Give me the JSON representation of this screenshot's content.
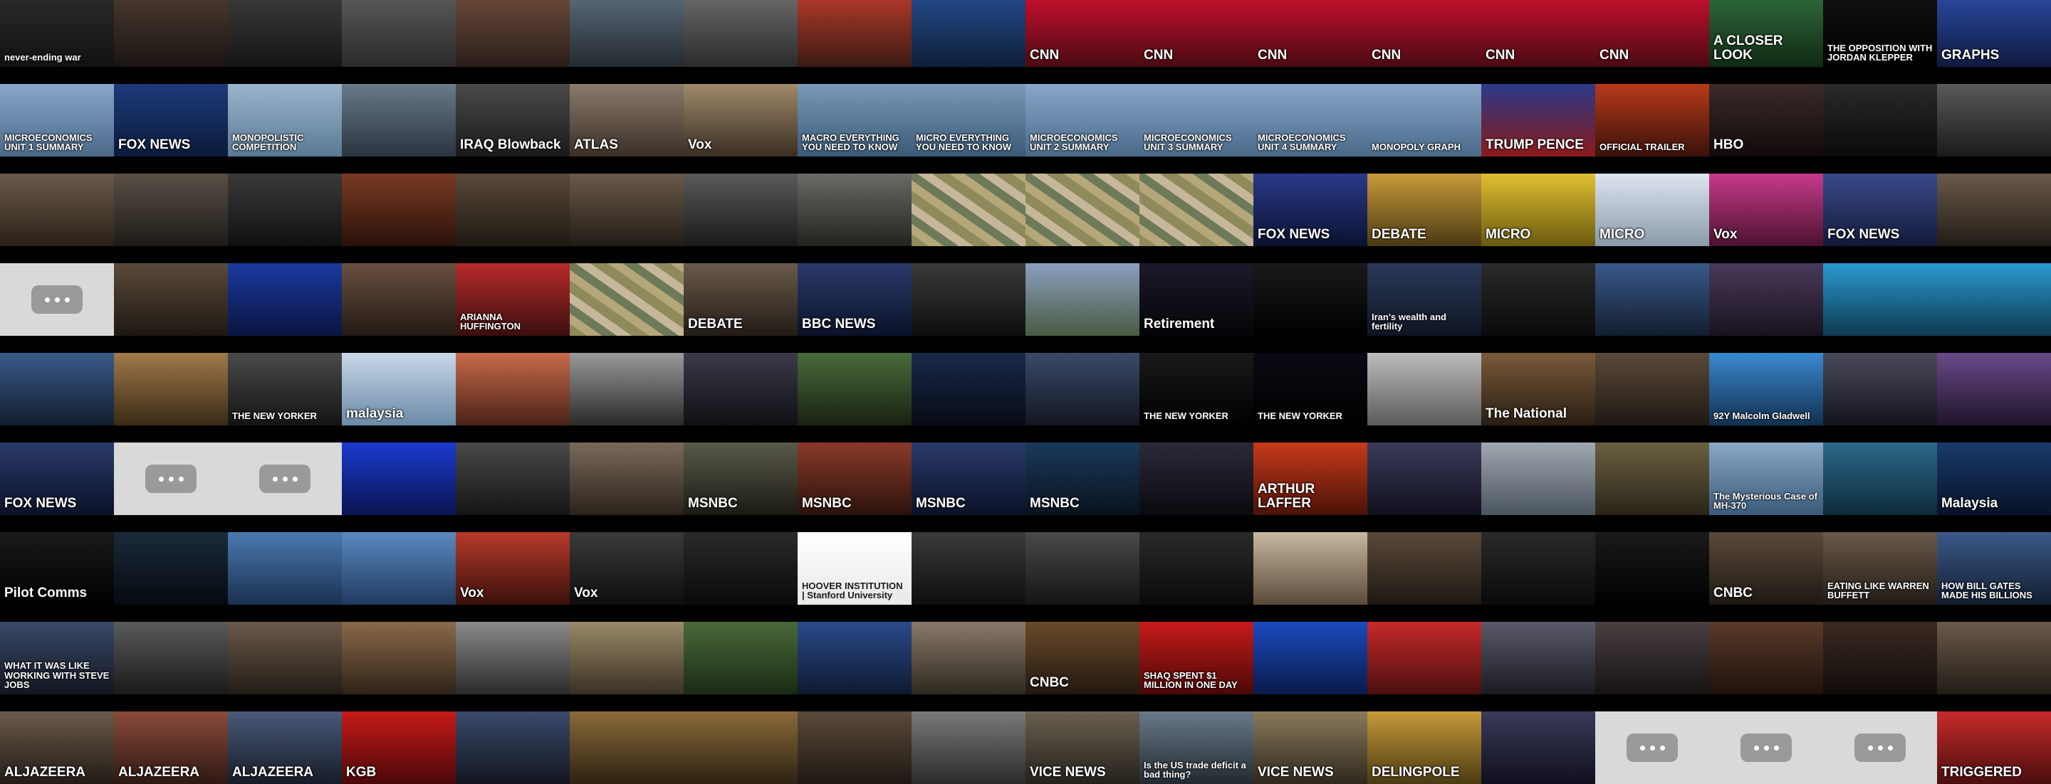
{
  "title": "Video thumbnail wall",
  "rows": [
    [
      {
        "caption": "never-ending war",
        "bg": "linear-gradient(#2b2b2b,#111)"
      },
      {
        "caption": "",
        "bg": "linear-gradient(#4a3a30,#1a1411)"
      },
      {
        "caption": "",
        "bg": "linear-gradient(#3b3b3b,#151515)"
      },
      {
        "caption": "",
        "bg": "linear-gradient(#5a5a5a,#2a2a2a)"
      },
      {
        "caption": "",
        "bg": "linear-gradient(#6b4a3a,#2a1e19)"
      },
      {
        "caption": "",
        "bg": "linear-gradient(#5b6b7a,#23292f)"
      },
      {
        "caption": "",
        "bg": "linear-gradient(#6a6a6a,#2b2b2b)"
      },
      {
        "caption": "",
        "bg": "linear-gradient(#b33a2a,#3b1a14)"
      },
      {
        "caption": "",
        "bg": "linear-gradient(#234a8a,#0f1f3a)"
      },
      {
        "caption": "CNN",
        "bg": "linear-gradient(#c8102e,#4a0a12)"
      },
      {
        "caption": "CNN",
        "bg": "linear-gradient(#c8102e,#4a0a12)"
      },
      {
        "caption": "CNN",
        "bg": "linear-gradient(#c8102e,#4a0a12)"
      },
      {
        "caption": "CNN",
        "bg": "linear-gradient(#c8102e,#4a0a12)"
      },
      {
        "caption": "CNN",
        "bg": "linear-gradient(#c8102e,#4a0a12)"
      },
      {
        "caption": "CNN",
        "bg": "linear-gradient(#c8102e,#4a0a12)"
      },
      {
        "caption": "A CLOSER LOOK",
        "bg": "linear-gradient(#2f6a3a,#0f2a14)"
      },
      {
        "caption": "THE OPPOSITION WITH JORDAN KLEPPER",
        "bg": "linear-gradient(#111,#000)"
      },
      {
        "caption": "GRAPHS",
        "bg": "linear-gradient(#2a4aa0,#0f1a40)"
      }
    ],
    [
      {
        "caption": "MICROECONOMICS UNIT 1 SUMMARY",
        "bg": "linear-gradient(#8aa6c8,#4a6a8a)"
      },
      {
        "caption": "FOX NEWS",
        "bg": "linear-gradient(#1d3b7a,#0b1a3a)"
      },
      {
        "caption": "MONOPOLISTIC COMPETITION",
        "bg": "linear-gradient(#9ab4cc,#5a7a94)"
      },
      {
        "caption": "",
        "bg": "linear-gradient(#6a7a8a,#2a3440)"
      },
      {
        "caption": "IRAQ Blowback",
        "bg": "linear-gradient(#4a4a4a,#1a1a1a)"
      },
      {
        "caption": "ATLAS",
        "bg": "linear-gradient(#8a7a6a,#3a3028)"
      },
      {
        "caption": "Vox",
        "bg": "linear-gradient(#a08a6a,#3a2e22)"
      },
      {
        "caption": "MACRO EVERYTHING YOU NEED TO KNOW",
        "bg": "linear-gradient(#7a9ab8,#3a5a78)"
      },
      {
        "caption": "MICRO EVERYTHING YOU NEED TO KNOW",
        "bg": "linear-gradient(#7a9ab8,#3a5a78)"
      },
      {
        "caption": "MICROECONOMICS UNIT 2 SUMMARY",
        "bg": "linear-gradient(#8aa6c8,#4a6a8a)"
      },
      {
        "caption": "MICROECONOMICS UNIT 3 SUMMARY",
        "bg": "linear-gradient(#8aa6c8,#4a6a8a)"
      },
      {
        "caption": "MICROECONOMICS UNIT 4 SUMMARY",
        "bg": "linear-gradient(#8aa6c8,#4a6a8a)"
      },
      {
        "caption": "MONOPOLY GRAPH",
        "bg": "linear-gradient(#8aa6c8,#4a6a8a)"
      },
      {
        "caption": "TRUMP PENCE",
        "bg": "linear-gradient(#2a3a8a,#8a1a1a)"
      },
      {
        "caption": "OFFICIAL TRAILER",
        "bg": "linear-gradient(#b83a1a,#3a120a)"
      },
      {
        "caption": "HBO",
        "bg": "linear-gradient(#3a2a2a,#120a0a)"
      },
      {
        "caption": "",
        "bg": "linear-gradient(#2a2a2a,#0a0a0a)"
      },
      {
        "caption": "",
        "bg": "linear-gradient(#5a5a5a,#1a1a1a)"
      }
    ],
    [
      {
        "caption": "",
        "bg": "linear-gradient(#6a5a4a,#2a2018)"
      },
      {
        "caption": "",
        "bg": "linear-gradient(#5a5048,#1e1a16)"
      },
      {
        "caption": "",
        "bg": "linear-gradient(#3a3a3a,#101010)"
      },
      {
        "caption": "",
        "bg": "linear-gradient(#7a3a22,#2a120a)"
      },
      {
        "caption": "",
        "bg": "linear-gradient(#5a4a3a,#1e1812)"
      },
      {
        "caption": "",
        "bg": "linear-gradient(#6a5a4a,#221c16)"
      },
      {
        "caption": "",
        "bg": "linear-gradient(#5a5a5a,#1a1a1a)"
      },
      {
        "caption": "",
        "bg": "linear-gradient(#6a6a66,#22221e)"
      },
      {
        "caption": "",
        "bg": "money"
      },
      {
        "caption": "",
        "bg": "money"
      },
      {
        "caption": "",
        "bg": "money"
      },
      {
        "caption": "FOX NEWS",
        "bg": "linear-gradient(#2a3a8a,#0a1230)"
      },
      {
        "caption": "DEBATE",
        "bg": "linear-gradient(#c89a3a,#4a3a12)"
      },
      {
        "caption": "MICRO",
        "bg": "linear-gradient(#e0c030,#6a5a10)"
      },
      {
        "caption": "MICRO",
        "bg": "linear-gradient(#dde4ee,#8a9aaa)"
      },
      {
        "caption": "Vox",
        "bg": "linear-gradient(#c83a8a,#4a1230)"
      },
      {
        "caption": "FOX NEWS",
        "bg": "linear-gradient(#3a4a8a,#121a3a)"
      },
      {
        "caption": "",
        "bg": "linear-gradient(#6a5a4a,#221c16)"
      }
    ],
    [
      {
        "caption": "",
        "bg": "placeholder"
      },
      {
        "caption": "",
        "bg": "linear-gradient(#5a4a3a,#1e1812)"
      },
      {
        "caption": "",
        "bg": "linear-gradient(#1a3aa0,#0a1440)"
      },
      {
        "caption": "",
        "bg": "linear-gradient(#6a5040,#221a14)"
      },
      {
        "caption": "ARIANNA HUFFINGTON",
        "bg": "linear-gradient(#b82a2a,#3a0e0e)"
      },
      {
        "caption": "",
        "bg": "money"
      },
      {
        "caption": "DEBATE",
        "bg": "linear-gradient(#6a5a4a,#221c16)"
      },
      {
        "caption": "BBC NEWS",
        "bg": "linear-gradient(#2a3a6a,#0a1228)"
      },
      {
        "caption": "",
        "bg": "linear-gradient(#3a3a3a,#0e0e0e)"
      },
      {
        "caption": "",
        "bg": "linear-gradient(#8aa0c0,#4a5a40)"
      },
      {
        "caption": "Retirement",
        "bg": "linear-gradient(#1a1a2a,#050508)"
      },
      {
        "caption": "",
        "bg": "linear-gradient(#1a1a1a,#000)"
      },
      {
        "caption": "Iran's wealth and fertility",
        "bg": "linear-gradient(#2a3a5a,#0e1422)"
      },
      {
        "caption": "",
        "bg": "linear-gradient(#2a2a2a,#0a0a0a)"
      },
      {
        "caption": "",
        "bg": "linear-gradient(#3a5a8a,#121e30)"
      },
      {
        "caption": "",
        "bg": "linear-gradient(#4a3a5a,#18121e)"
      },
      {
        "caption": "",
        "bg": "linear-gradient(#2a9ad0,#0e3a50)"
      },
      {
        "caption": "",
        "bg": "linear-gradient(#2a9ad0,#0e3a50)"
      }
    ],
    [
      {
        "caption": "",
        "bg": "linear-gradient(#3a5a8a,#121e30)"
      },
      {
        "caption": "",
        "bg": "linear-gradient(#a07a4a,#3a2a16)"
      },
      {
        "caption": "THE NEW YORKER",
        "bg": "linear-gradient(#4a4a4a,#141414)"
      },
      {
        "caption": "malaysia",
        "bg": "linear-gradient(#c8d8e8,#6a8aa8)"
      },
      {
        "caption": "",
        "bg": "linear-gradient(#c86a4a,#4a2218)"
      },
      {
        "caption": "",
        "bg": "linear-gradient(#9a9a9a,#2a2a2a)"
      },
      {
        "caption": "",
        "bg": "linear-gradient(#3a3a4a,#101014)"
      },
      {
        "caption": "",
        "bg": "linear-gradient(#4a6a3a,#182212)"
      },
      {
        "caption": "",
        "bg": "linear-gradient(#1a2a4a,#060a14)"
      },
      {
        "caption": "",
        "bg": "linear-gradient(#3a4a6a,#121620)"
      },
      {
        "caption": "THE NEW YORKER",
        "bg": "linear-gradient(#1a1a1a,#000)"
      },
      {
        "caption": "THE NEW YORKER",
        "bg": "linear-gradient(#0a0a14,#000)"
      },
      {
        "caption": "",
        "bg": "linear-gradient(#bdbdbd,#5a5a5a)"
      },
      {
        "caption": "The National",
        "bg": "linear-gradient(#7a5a3a,#2a1e12)"
      },
      {
        "caption": "",
        "bg": "linear-gradient(#5a4a3a,#1e1812)"
      },
      {
        "caption": "92Y Malcolm Gladwell",
        "bg": "linear-gradient(#3a8ad0,#123050)"
      },
      {
        "caption": "",
        "bg": "linear-gradient(#4a4a5a,#14141e)"
      },
      {
        "caption": "",
        "bg": "linear-gradient(#6a4a8a,#1e142a)"
      }
    ],
    [
      {
        "caption": "FOX NEWS",
        "bg": "linear-gradient(#2a3a6a,#0a1228)"
      },
      {
        "caption": "",
        "bg": "placeholder"
      },
      {
        "caption": "",
        "bg": "placeholder"
      },
      {
        "caption": "",
        "bg": "linear-gradient(#1a3ad0,#0a1450)"
      },
      {
        "caption": "",
        "bg": "linear-gradient(#4a4a4a,#141414)"
      },
      {
        "caption": "",
        "bg": "linear-gradient(#7a6a5a,#2a221a)"
      },
      {
        "caption": "MSNBC",
        "bg": "linear-gradient(#5a5a4a,#1a1a14)"
      },
      {
        "caption": "MSNBC",
        "bg": "linear-gradient(#8a3a2a,#2a120c)"
      },
      {
        "caption": "MSNBC",
        "bg": "linear-gradient(#2a3a6a,#0a1228)"
      },
      {
        "caption": "MSNBC",
        "bg": "linear-gradient(#1a3a5a,#08121e)"
      },
      {
        "caption": "",
        "bg": "linear-gradient(#2a2a3a,#0a0a10)"
      },
      {
        "caption": "ARTHUR LAFFER",
        "bg": "linear-gradient(#c83a1a,#4a1208)"
      },
      {
        "caption": "",
        "bg": "linear-gradient(#3a3a5a,#10101e)"
      },
      {
        "caption": "",
        "bg": "linear-gradient(#a0a8b0,#4a545e)"
      },
      {
        "caption": "",
        "bg": "linear-gradient(#6a6040,#2a2418)"
      },
      {
        "caption": "The Mysterious Case of MH-370",
        "bg": "linear-gradient(#8aa8c8,#3a5a7a)"
      },
      {
        "caption": "",
        "bg": "linear-gradient(#2a6a8a,#0e2a3a)"
      },
      {
        "caption": "Malaysia",
        "bg": "linear-gradient(#1a3a6a,#061228)"
      }
    ],
    [
      {
        "caption": "Pilot Comms",
        "bg": "linear-gradient(#1a1a1a,#000)"
      },
      {
        "caption": "",
        "bg": "linear-gradient(#1a2a3a,#060a10)"
      },
      {
        "caption": "",
        "bg": "linear-gradient(#4a7ab0,#1a3050)"
      },
      {
        "caption": "",
        "bg": "linear-gradient(#5a8ac0,#203a60)"
      },
      {
        "caption": "Vox",
        "bg": "linear-gradient(#b83a2a,#3a100a)"
      },
      {
        "caption": "Vox",
        "bg": "linear-gradient(#3a3a3a,#0e0e0e)"
      },
      {
        "caption": "",
        "bg": "linear-gradient(#2a2a2a,#0a0a0a)"
      },
      {
        "caption": "HOOVER INSTITUTION | Stanford University",
        "bg": "linear-gradient(#ffffff,#e8e8e8)"
      },
      {
        "caption": "",
        "bg": "linear-gradient(#3a3a3a,#0e0e0e)"
      },
      {
        "caption": "",
        "bg": "linear-gradient(#4a4a4a,#141414)"
      },
      {
        "caption": "",
        "bg": "linear-gradient(#2a2a2a,#0a0a0a)"
      },
      {
        "caption": "",
        "bg": "linear-gradient(#c8b8a0,#5a4a3a)"
      },
      {
        "caption": "",
        "bg": "linear-gradient(#5a4a3a,#1e1812)"
      },
      {
        "caption": "",
        "bg": "linear-gradient(#2a2a2a,#0a0a0a)"
      },
      {
        "caption": "",
        "bg": "linear-gradient(#1a1a1a,#000)"
      },
      {
        "caption": "CNBC",
        "bg": "linear-gradient(#5a4a3a,#1e1812)"
      },
      {
        "caption": "EATING LIKE WARREN BUFFETT",
        "bg": "linear-gradient(#6a5a4a,#221c16)"
      },
      {
        "caption": "HOW BILL GATES MADE HIS BILLIONS",
        "bg": "linear-gradient(#3a5a8a,#121e30)"
      }
    ],
    [
      {
        "caption": "WHAT IT WAS LIKE WORKING WITH STEVE JOBS",
        "bg": "linear-gradient(#3a4a6a,#121620)"
      },
      {
        "caption": "",
        "bg": "linear-gradient(#5a5a5a,#1a1a1a)"
      },
      {
        "caption": "",
        "bg": "linear-gradient(#6a5a4a,#221c16)"
      },
      {
        "caption": "",
        "bg": "linear-gradient(#8a6a4a,#2e2216)"
      },
      {
        "caption": "",
        "bg": "linear-gradient(#8a8a8a,#2a2a2a)"
      },
      {
        "caption": "",
        "bg": "linear-gradient(#9a8a6a,#3a3022)"
      },
      {
        "caption": "",
        "bg": "linear-gradient(#4a6a3a,#1a2a14)"
      },
      {
        "caption": "",
        "bg": "linear-gradient(#2a4a8a,#0e1a30)"
      },
      {
        "caption": "",
        "bg": "linear-gradient(#8a7a6a,#2e2820)"
      },
      {
        "caption": "CNBC",
        "bg": "linear-gradient(#6a4a2a,#221810)"
      },
      {
        "caption": "SHAQ SPENT $1 MILLION IN ONE DAY",
        "bg": "linear-gradient(#c81a1a,#4a0808)"
      },
      {
        "caption": "",
        "bg": "linear-gradient(#1a4ac0,#0a1a4a)"
      },
      {
        "caption": "",
        "bg": "linear-gradient(#c82a2a,#4a0e0e)"
      },
      {
        "caption": "",
        "bg": "linear-gradient(#5a5a6a,#1a1a22)"
      },
      {
        "caption": "",
        "bg": "linear-gradient(#4a4040,#161212)"
      },
      {
        "caption": "",
        "bg": "linear-gradient(#5a3a2a,#1e120c)"
      },
      {
        "caption": "",
        "bg": "linear-gradient(#3a2a22,#120c0a)"
      },
      {
        "caption": "",
        "bg": "linear-gradient(#6a5a4a,#221c16)"
      }
    ],
    [
      {
        "caption": "ALJAZEERA",
        "bg": "linear-gradient(#6a5a4a,#221c16)"
      },
      {
        "caption": "ALJAZEERA",
        "bg": "linear-gradient(#8a4a3a,#2e1812)"
      },
      {
        "caption": "ALJAZEERA",
        "bg": "linear-gradient(#4a5a7a,#161c28)"
      },
      {
        "caption": "KGB",
        "bg": "linear-gradient(#c81a1a,#4a0808)"
      },
      {
        "caption": "",
        "bg": "linear-gradient(#3a4a6a,#121620)"
      },
      {
        "caption": "",
        "bg": "linear-gradient(#8a6a3a,#2e2212)"
      },
      {
        "caption": "",
        "bg": "linear-gradient(#8a6a3a,#2e2212)"
      },
      {
        "caption": "",
        "bg": "linear-gradient(#5a4a3a,#1e1812)"
      },
      {
        "caption": "",
        "bg": "linear-gradient(#7a7a7a,#2a2a2a)"
      },
      {
        "caption": "VICE NEWS",
        "bg": "linear-gradient(#6a6050,#24201a)"
      },
      {
        "caption": "Is the US trade deficit a bad thing?",
        "bg": "linear-gradient(#6a7a8a,#222a30)"
      },
      {
        "caption": "VICE NEWS",
        "bg": "linear-gradient(#8a7a5a,#2e281e)"
      },
      {
        "caption": "DELINGPOLE",
        "bg": "linear-gradient(#c89a3a,#4a3a12)"
      },
      {
        "caption": "",
        "bg": "linear-gradient(#3a3a5a,#10101e)"
      },
      {
        "caption": "",
        "bg": "placeholder"
      },
      {
        "caption": "",
        "bg": "placeholder"
      },
      {
        "caption": "",
        "bg": "placeholder"
      },
      {
        "caption": "TRIGGERED",
        "bg": "linear-gradient(#c82a2a,#4a0e0e)"
      }
    ]
  ]
}
